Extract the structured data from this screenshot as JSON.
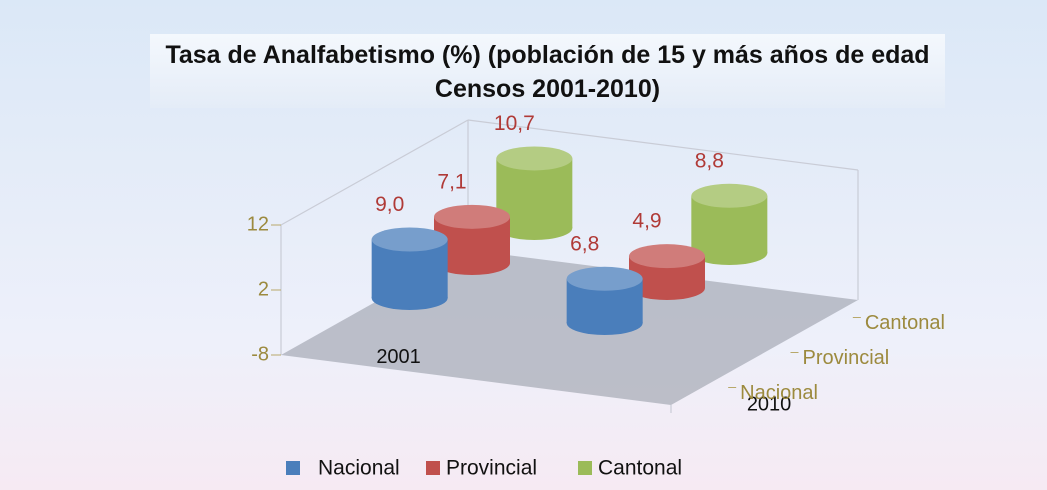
{
  "chart_data": {
    "type": "bar3d",
    "title": "Tasa de Analfabetismo (%) (población de 15 y más años de edad Censos 2001-2010)",
    "categories": [
      "2001",
      "2010"
    ],
    "series": [
      {
        "name": "Nacional",
        "color": "#4a7ebb",
        "values": [
          9.0,
          6.8
        ],
        "value_labels": [
          "9,0",
          "6,8"
        ]
      },
      {
        "name": "Provincial",
        "color": "#c0504d",
        "values": [
          7.1,
          4.9
        ],
        "value_labels": [
          "7,1",
          "4,9"
        ]
      },
      {
        "name": "Cantonal",
        "color": "#9bbb59",
        "values": [
          10.7,
          8.8
        ],
        "value_labels": [
          "10,7",
          "8,8"
        ]
      }
    ],
    "ylim": [
      -8,
      12
    ],
    "yticks": [
      -8,
      2,
      12
    ],
    "legend": "bottom"
  }
}
